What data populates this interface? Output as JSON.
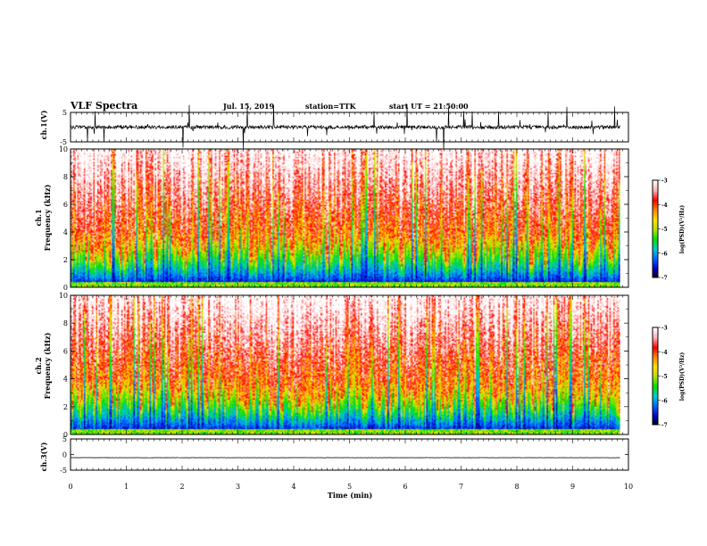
{
  "chart_data": {
    "type": "heatmap",
    "header": {
      "title": "VLF Spectra",
      "date": "Jul. 15, 2019",
      "station": "station=TTK",
      "start": "start UT = 21:50:00"
    },
    "x": {
      "label": "Time (min)",
      "range": [
        0,
        10
      ],
      "ticks": [
        "0",
        "1",
        "2",
        "3",
        "4",
        "5",
        "6",
        "7",
        "8",
        "9",
        "10"
      ],
      "data_end": 9.85
    },
    "panels": [
      {
        "id": "ch1-waveform",
        "type": "line",
        "ylabel": "ch.1(V)",
        "yrange": [
          -5,
          5
        ],
        "yticks": [
          "5",
          "-5"
        ],
        "baseline": 0,
        "noise_amplitude": 1.2,
        "spike_amplitude": 6
      },
      {
        "id": "ch1-spectrogram",
        "type": "heatmap",
        "ylabel_top": "ch.1",
        "ylabel": "Frequency (kHz)",
        "yrange": [
          0,
          10
        ],
        "yticks": [
          "0",
          "2",
          "4",
          "6",
          "8",
          "10"
        ],
        "colorbar": {
          "label": "log(PSD)(V²/Hz)",
          "range": [
            -7,
            -3
          ],
          "ticks": [
            "-3",
            "-4",
            "-5",
            "-6",
            "-7"
          ]
        }
      },
      {
        "id": "ch2-spectrogram",
        "type": "heatmap",
        "ylabel_top": "ch.2",
        "ylabel": "Frequency (kHz)",
        "yrange": [
          0,
          10
        ],
        "yticks": [
          "0",
          "2",
          "4",
          "6",
          "8",
          "10"
        ],
        "colorbar": {
          "label": "log(PSD)(V²/Hz)",
          "range": [
            -7,
            -3
          ],
          "ticks": [
            "-3",
            "-4",
            "-5",
            "-6",
            "-7"
          ]
        }
      },
      {
        "id": "ch3-waveform",
        "type": "line",
        "ylabel": "ch.3(V)",
        "yrange": [
          -5,
          5
        ],
        "yticks": [
          "5",
          "0",
          "-5"
        ],
        "baseline": -1,
        "noise_amplitude": 0.1
      }
    ],
    "colormap": [
      "#000000",
      "#0000cc",
      "#0066ff",
      "#00cccc",
      "#00e000",
      "#b8e000",
      "#ffe000",
      "#ff8800",
      "#ff0000",
      "#ffb0b0",
      "#ffffff"
    ]
  }
}
